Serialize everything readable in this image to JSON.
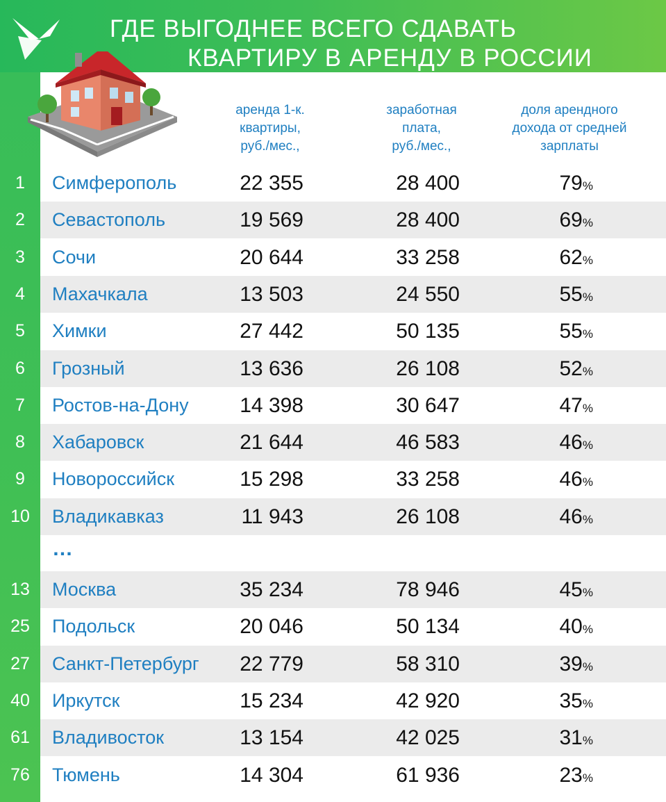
{
  "title": {
    "line1": "ГДЕ ВЫГОДНЕЕ ВСЕГО СДАВАТЬ",
    "line2": "КВАРТИРУ В АРЕНДУ В РОССИИ"
  },
  "columns": {
    "rent": [
      "аренда 1-к.",
      "квартиры,",
      "руб./мес.,"
    ],
    "salary": [
      "заработная",
      "плата,",
      "руб./мес.,"
    ],
    "share": [
      "доля арендного",
      "дохода от средней",
      "зарплаты"
    ]
  },
  "percent_sign": "%",
  "ellipsis": "…",
  "rows_top": [
    {
      "rank": "1",
      "city": "Симферополь",
      "rent": "22 355",
      "salary": "28 400",
      "share": "79"
    },
    {
      "rank": "2",
      "city": "Севастополь",
      "rent": "19 569",
      "salary": "28 400",
      "share": "69"
    },
    {
      "rank": "3",
      "city": "Сочи",
      "rent": "20 644",
      "salary": "33 258",
      "share": "62"
    },
    {
      "rank": "4",
      "city": "Махачкала",
      "rent": "13 503",
      "salary": "24 550",
      "share": "55"
    },
    {
      "rank": "5",
      "city": "Химки",
      "rent": "27 442",
      "salary": "50 135",
      "share": "55"
    },
    {
      "rank": "6",
      "city": "Грозный",
      "rent": "13 636",
      "salary": "26 108",
      "share": "52"
    },
    {
      "rank": "7",
      "city": "Ростов-на-Дону",
      "rent": "14 398",
      "salary": "30 647",
      "share": "47"
    },
    {
      "rank": "8",
      "city": "Хабаровск",
      "rent": "21 644",
      "salary": "46 583",
      "share": "46"
    },
    {
      "rank": "9",
      "city": "Новороссийск",
      "rent": "15 298",
      "salary": "33 258",
      "share": "46"
    },
    {
      "rank": "10",
      "city": "Владикавказ",
      "rent": "11 943",
      "salary": "26 108",
      "share": "46"
    }
  ],
  "rows_bottom": [
    {
      "rank": "13",
      "city": "Москва",
      "rent": "35 234",
      "salary": "78 946",
      "share": "45"
    },
    {
      "rank": "25",
      "city": "Подольск",
      "rent": "20 046",
      "salary": "50 134",
      "share": "40"
    },
    {
      "rank": "27",
      "city": "Санкт-Петербург",
      "rent": "22 779",
      "salary": "58 310",
      "share": "39"
    },
    {
      "rank": "40",
      "city": "Иркутск",
      "rent": "15 234",
      "salary": "42 920",
      "share": "35"
    },
    {
      "rank": "61",
      "city": "Владивосток",
      "rent": "13 154",
      "salary": "42 025",
      "share": "31"
    },
    {
      "rank": "76",
      "city": "Тюмень",
      "rent": "14 304",
      "salary": "61 936",
      "share": "23"
    }
  ],
  "colors": {
    "green": "#3fbe56",
    "blue_text": "#1f7fc1",
    "row_shade": "#ebebeb"
  },
  "icons": {
    "logo": "swallow-logo-icon",
    "illustration": "house-illustration-icon"
  }
}
